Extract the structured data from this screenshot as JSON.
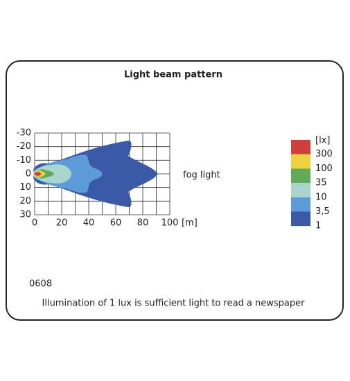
{
  "title": "Light beam pattern",
  "x_axis": {
    "lim": [
      0,
      100
    ],
    "ticks": [
      0,
      20,
      40,
      60,
      80,
      100
    ],
    "unit": "[m]"
  },
  "y_axis": {
    "lim": [
      -30,
      30
    ],
    "ticks": [
      -30,
      -20,
      -10,
      0,
      10,
      20,
      30
    ]
  },
  "beam_label": "fog light",
  "legend": {
    "unit": "[lx]",
    "labels": [
      300,
      100,
      35,
      10,
      "3,5",
      1
    ],
    "colors": [
      "#d0403a",
      "#ecd23c",
      "#5fab5a",
      "#a8d5cc",
      "#5d9ad8",
      "#3a5aa8"
    ]
  },
  "code": "0608",
  "note": "Illumination of 1 lux is sufficient light to read a newspaper"
}
